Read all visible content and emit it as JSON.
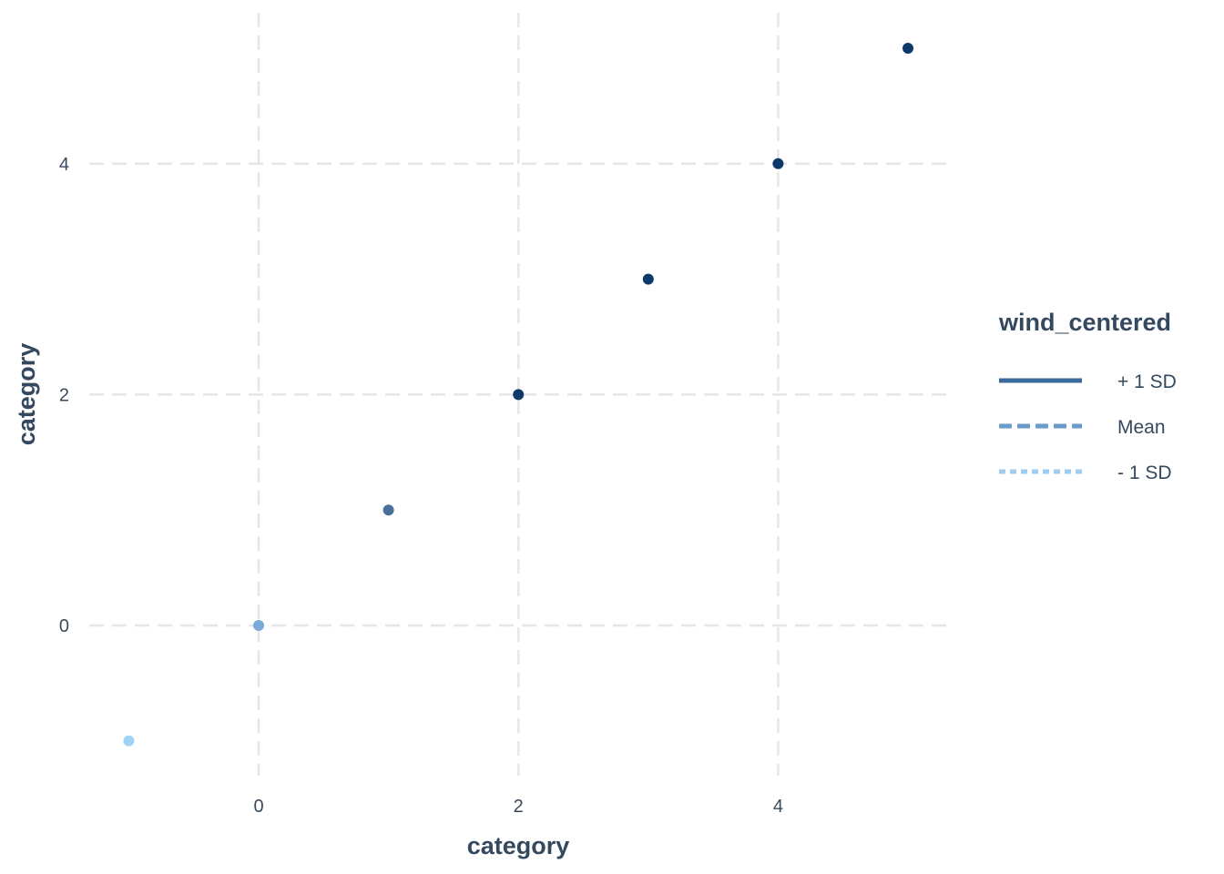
{
  "chart_data": {
    "type": "scatter",
    "title": "",
    "xlabel": "category",
    "ylabel": "category",
    "xlim": [
      -1.3,
      5.3
    ],
    "ylim": [
      -1.3,
      5.3
    ],
    "xticks": [
      0,
      2,
      4
    ],
    "yticks": [
      0,
      2,
      4
    ],
    "grid": true,
    "legend": {
      "title": "wind_centered",
      "placement": "right",
      "entries": [
        {
          "label": "+ 1 SD",
          "color": "#3b6a9c",
          "line_style": "solid"
        },
        {
          "label": "Mean",
          "color": "#6a9ac9",
          "line_style": "dashed"
        },
        {
          "label": "- 1 SD",
          "color": "#9fcdf2",
          "line_style": "dotted"
        }
      ]
    },
    "points": [
      {
        "x": -1,
        "y": -1,
        "color": "#a3d2f7"
      },
      {
        "x": 0,
        "y": 0,
        "color": "#7aaad8"
      },
      {
        "x": 1,
        "y": 1,
        "color": "#4a6f99"
      },
      {
        "x": 2,
        "y": 2,
        "color": "#0d3a6a"
      },
      {
        "x": 3,
        "y": 3,
        "color": "#0d3a6a"
      },
      {
        "x": 4,
        "y": 4,
        "color": "#0d3a6a"
      },
      {
        "x": 5,
        "y": 5,
        "color": "#0d3a6a"
      }
    ]
  }
}
